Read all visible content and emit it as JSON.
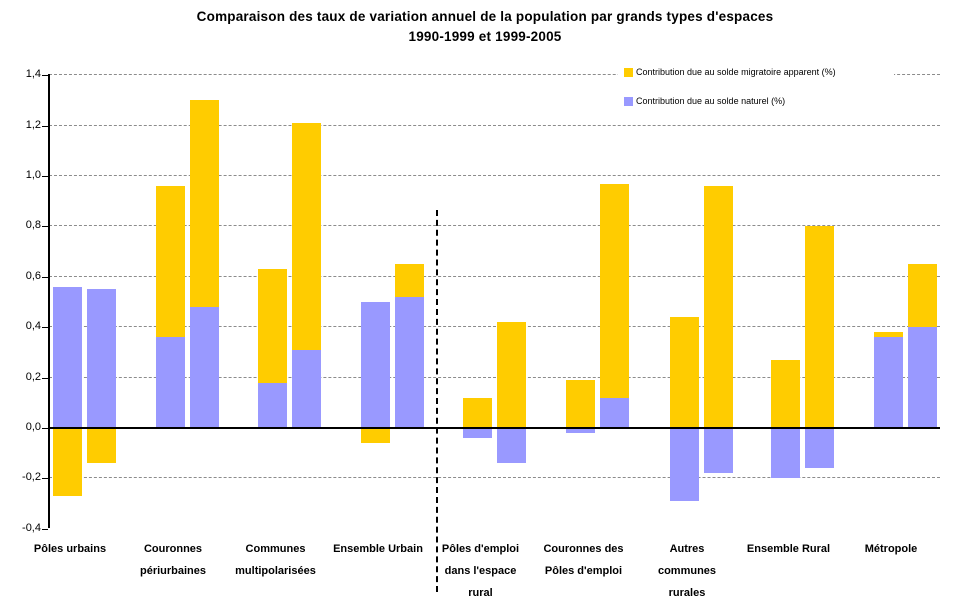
{
  "chart_data": {
    "type": "bar",
    "stacked": true,
    "title": "Comparaison des taux de variation annuel de la population par grands types d'espaces",
    "subtitle": "1990-1999 et 1999-2005",
    "ylim": [
      -0.4,
      1.4
    ],
    "ytick_step": 0.2,
    "yticks": [
      {
        "value": 1.4,
        "label": "1,4"
      },
      {
        "value": 1.2,
        "label": "1,2"
      },
      {
        "value": 1.0,
        "label": "1,0"
      },
      {
        "value": 0.8,
        "label": "0,8"
      },
      {
        "value": 0.6,
        "label": "0,6"
      },
      {
        "value": 0.4,
        "label": "0,4"
      },
      {
        "value": 0.2,
        "label": "0,2"
      },
      {
        "value": 0.0,
        "label": "0,0"
      },
      {
        "value": -0.2,
        "label": "-0,2"
      },
      {
        "value": -0.4,
        "label": "-0,4"
      }
    ],
    "grid_values": [
      1.4,
      1.2,
      1.0,
      0.8,
      0.6,
      0.4,
      0.2,
      -0.2
    ],
    "legend": [
      {
        "key": "migratoire",
        "label": "Contribution due au solde migratoire apparent (%)",
        "color": "#FFCC00"
      },
      {
        "key": "naturel",
        "label": "Contribution due au solde naturel (%)",
        "color": "#9999FF"
      }
    ],
    "legend_position": "top-right",
    "bar_order": [
      "naturel",
      "migratoire"
    ],
    "periods": [
      "1990-1999",
      "1999-2005"
    ],
    "separator_after_group_index": 3,
    "colors": {
      "migratoire": "#FFCC00",
      "naturel": "#9999FF",
      "grid": "#8c8c8c",
      "axis": "#000000"
    },
    "groups": [
      {
        "name": "Pôles urbains",
        "label_lines": [
          "Pôles urbains"
        ],
        "bars": [
          {
            "naturel": 0.56,
            "migratoire": -0.27
          },
          {
            "naturel": 0.55,
            "migratoire": -0.14
          }
        ]
      },
      {
        "name": "Couronnes périurbaines",
        "label_lines": [
          "Couronnes",
          "périurbaines"
        ],
        "bars": [
          {
            "naturel": 0.36,
            "migratoire": 0.6
          },
          {
            "naturel": 0.48,
            "migratoire": 0.82
          }
        ]
      },
      {
        "name": "Communes multipolarisées",
        "label_lines": [
          "Communes",
          "multipolarisées"
        ],
        "bars": [
          {
            "naturel": 0.18,
            "migratoire": 0.45
          },
          {
            "naturel": 0.31,
            "migratoire": 0.9
          }
        ]
      },
      {
        "name": "Ensemble Urbain",
        "label_lines": [
          "Ensemble Urbain"
        ],
        "bars": [
          {
            "naturel": 0.5,
            "migratoire": -0.06
          },
          {
            "naturel": 0.52,
            "migratoire": 0.13
          }
        ]
      },
      {
        "name": "Pôles d'emploi dans l'espace rural",
        "label_lines": [
          "Pôles d'emploi",
          "dans l'espace",
          "rural"
        ],
        "bars": [
          {
            "naturel": -0.04,
            "migratoire": 0.12
          },
          {
            "naturel": -0.14,
            "migratoire": 0.42
          }
        ]
      },
      {
        "name": "Couronnes des Pôles d'emploi",
        "label_lines": [
          "Couronnes des",
          "Pôles d'emploi"
        ],
        "bars": [
          {
            "naturel": -0.02,
            "migratoire": 0.19
          },
          {
            "naturel": 0.12,
            "migratoire": 0.85
          }
        ]
      },
      {
        "name": "Autres communes rurales",
        "label_lines": [
          "Autres",
          "communes",
          "rurales"
        ],
        "bars": [
          {
            "naturel": -0.29,
            "migratoire": 0.44
          },
          {
            "naturel": -0.18,
            "migratoire": 0.96
          }
        ]
      },
      {
        "name": "Ensemble Rural",
        "label_lines": [
          "Ensemble Rural"
        ],
        "bars": [
          {
            "naturel": -0.2,
            "migratoire": 0.27
          },
          {
            "naturel": -0.16,
            "migratoire": 0.8
          }
        ]
      },
      {
        "name": "Métropole",
        "label_lines": [
          "Métropole"
        ],
        "bars": [
          {
            "naturel": 0.36,
            "migratoire": 0.02
          },
          {
            "naturel": 0.4,
            "migratoire": 0.25
          }
        ]
      }
    ]
  }
}
